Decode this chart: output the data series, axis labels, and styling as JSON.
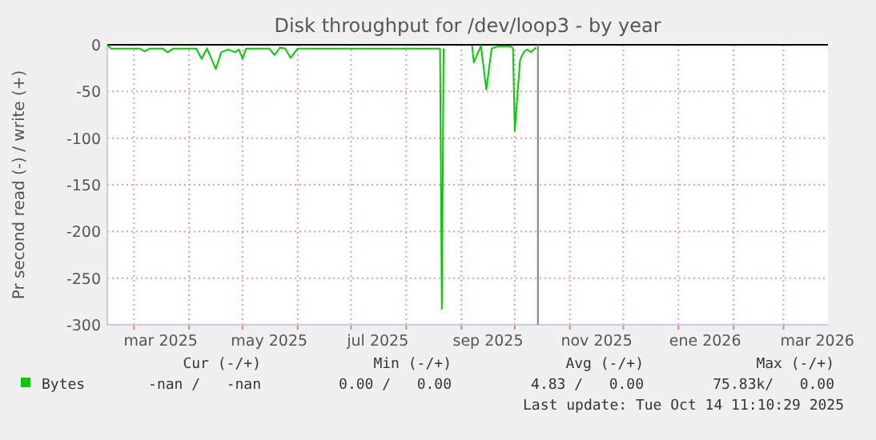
{
  "chart_data": {
    "type": "line",
    "title": "Disk throughput for /dev/loop3 - by year",
    "ylabel": "Pr second read (-) / write (+)",
    "x": [
      "2025-02-14",
      "2025-02-16",
      "2025-03-04",
      "2025-03-07",
      "2025-03-10",
      "2025-03-17",
      "2025-03-20",
      "2025-03-23",
      "2025-04-05",
      "2025-04-08",
      "2025-04-11",
      "2025-04-16",
      "2025-04-19",
      "2025-04-23",
      "2025-04-27",
      "2025-04-29",
      "2025-05-01",
      "2025-05-03",
      "2025-05-16",
      "2025-05-19",
      "2025-05-22",
      "2025-05-25",
      "2025-05-28",
      "2025-06-01",
      "2025-08-20",
      "2025-08-21",
      "2025-08-22",
      "2025-08-23",
      "2025-09-07",
      "2025-09-08",
      "2025-09-12",
      "2025-09-15",
      "2025-09-18",
      "2025-09-21",
      "2025-09-29",
      "2025-09-30",
      "2025-10-01",
      "2025-10-04",
      "2025-10-06",
      "2025-10-08",
      "2025-10-10",
      "2025-10-13"
    ],
    "series": [
      {
        "name": "Bytes",
        "color": "#00cc00",
        "values": [
          0,
          -4,
          -4,
          -7,
          -4,
          -4,
          -8,
          -4,
          -4,
          -15,
          -4,
          -26,
          -8,
          -5,
          -8,
          -5,
          -15,
          -4,
          -4,
          -11,
          -3,
          -4,
          -14,
          -4,
          -4,
          -283,
          -4,
          null,
          -1,
          -19,
          -1,
          -48,
          -4,
          -2,
          -2,
          -4,
          -92,
          -16,
          -8,
          -5,
          -8,
          -3
        ]
      }
    ],
    "xlim": [
      "2025-02-14",
      "2026-03-26"
    ],
    "xticks": [
      {
        "value": "2025-03-01",
        "label": null
      },
      {
        "value": "2025-04-01",
        "label": null
      },
      {
        "value": "2025-05-01",
        "label": null
      },
      {
        "value": "2025-06-01",
        "label": null
      },
      {
        "value": "2025-07-01",
        "label": null
      },
      {
        "value": "2025-08-01",
        "label": null
      },
      {
        "value": "2025-09-01",
        "label": null
      },
      {
        "value": "2025-10-01",
        "label": null
      },
      {
        "value": "2025-11-01",
        "label": null
      },
      {
        "value": "2025-12-01",
        "label": null
      },
      {
        "value": "2026-01-01",
        "label": null
      },
      {
        "value": "2026-02-01",
        "label": null
      },
      {
        "value": "2026-03-01",
        "label": null
      },
      {
        "value": "2025-03-16",
        "label": "mar 2025"
      },
      {
        "value": "2025-05-16",
        "label": "may 2025"
      },
      {
        "value": "2025-07-16",
        "label": "jul 2025"
      },
      {
        "value": "2025-09-16",
        "label": "sep 2025"
      },
      {
        "value": "2025-11-16",
        "label": "nov 2025"
      },
      {
        "value": "2026-01-16",
        "label": "ene 2026"
      },
      {
        "value": "2026-03-20",
        "label": "mar 2026"
      }
    ],
    "ylim": [
      -300,
      0
    ],
    "yticks": [
      -300,
      -250,
      -200,
      -150,
      -100,
      -50,
      0
    ],
    "grid": true,
    "legend": "bottom",
    "line_style": "solid",
    "ref_lines": [
      {
        "axis": "y",
        "value": 0,
        "color": "#000000"
      },
      {
        "axis": "x",
        "value": "2025-10-14",
        "color": "#808080"
      }
    ],
    "annotations": [
      "Cur (-/+)",
      "Min (-/+)",
      "Avg (-/+)",
      "Max (-/+)",
      "-nan /   -nan",
      "0.00 /   0.00",
      "4.83 /   0.00",
      "75.83k/   0.00",
      "Last update: Tue Oct 14 11:10:29 2025"
    ]
  }
}
